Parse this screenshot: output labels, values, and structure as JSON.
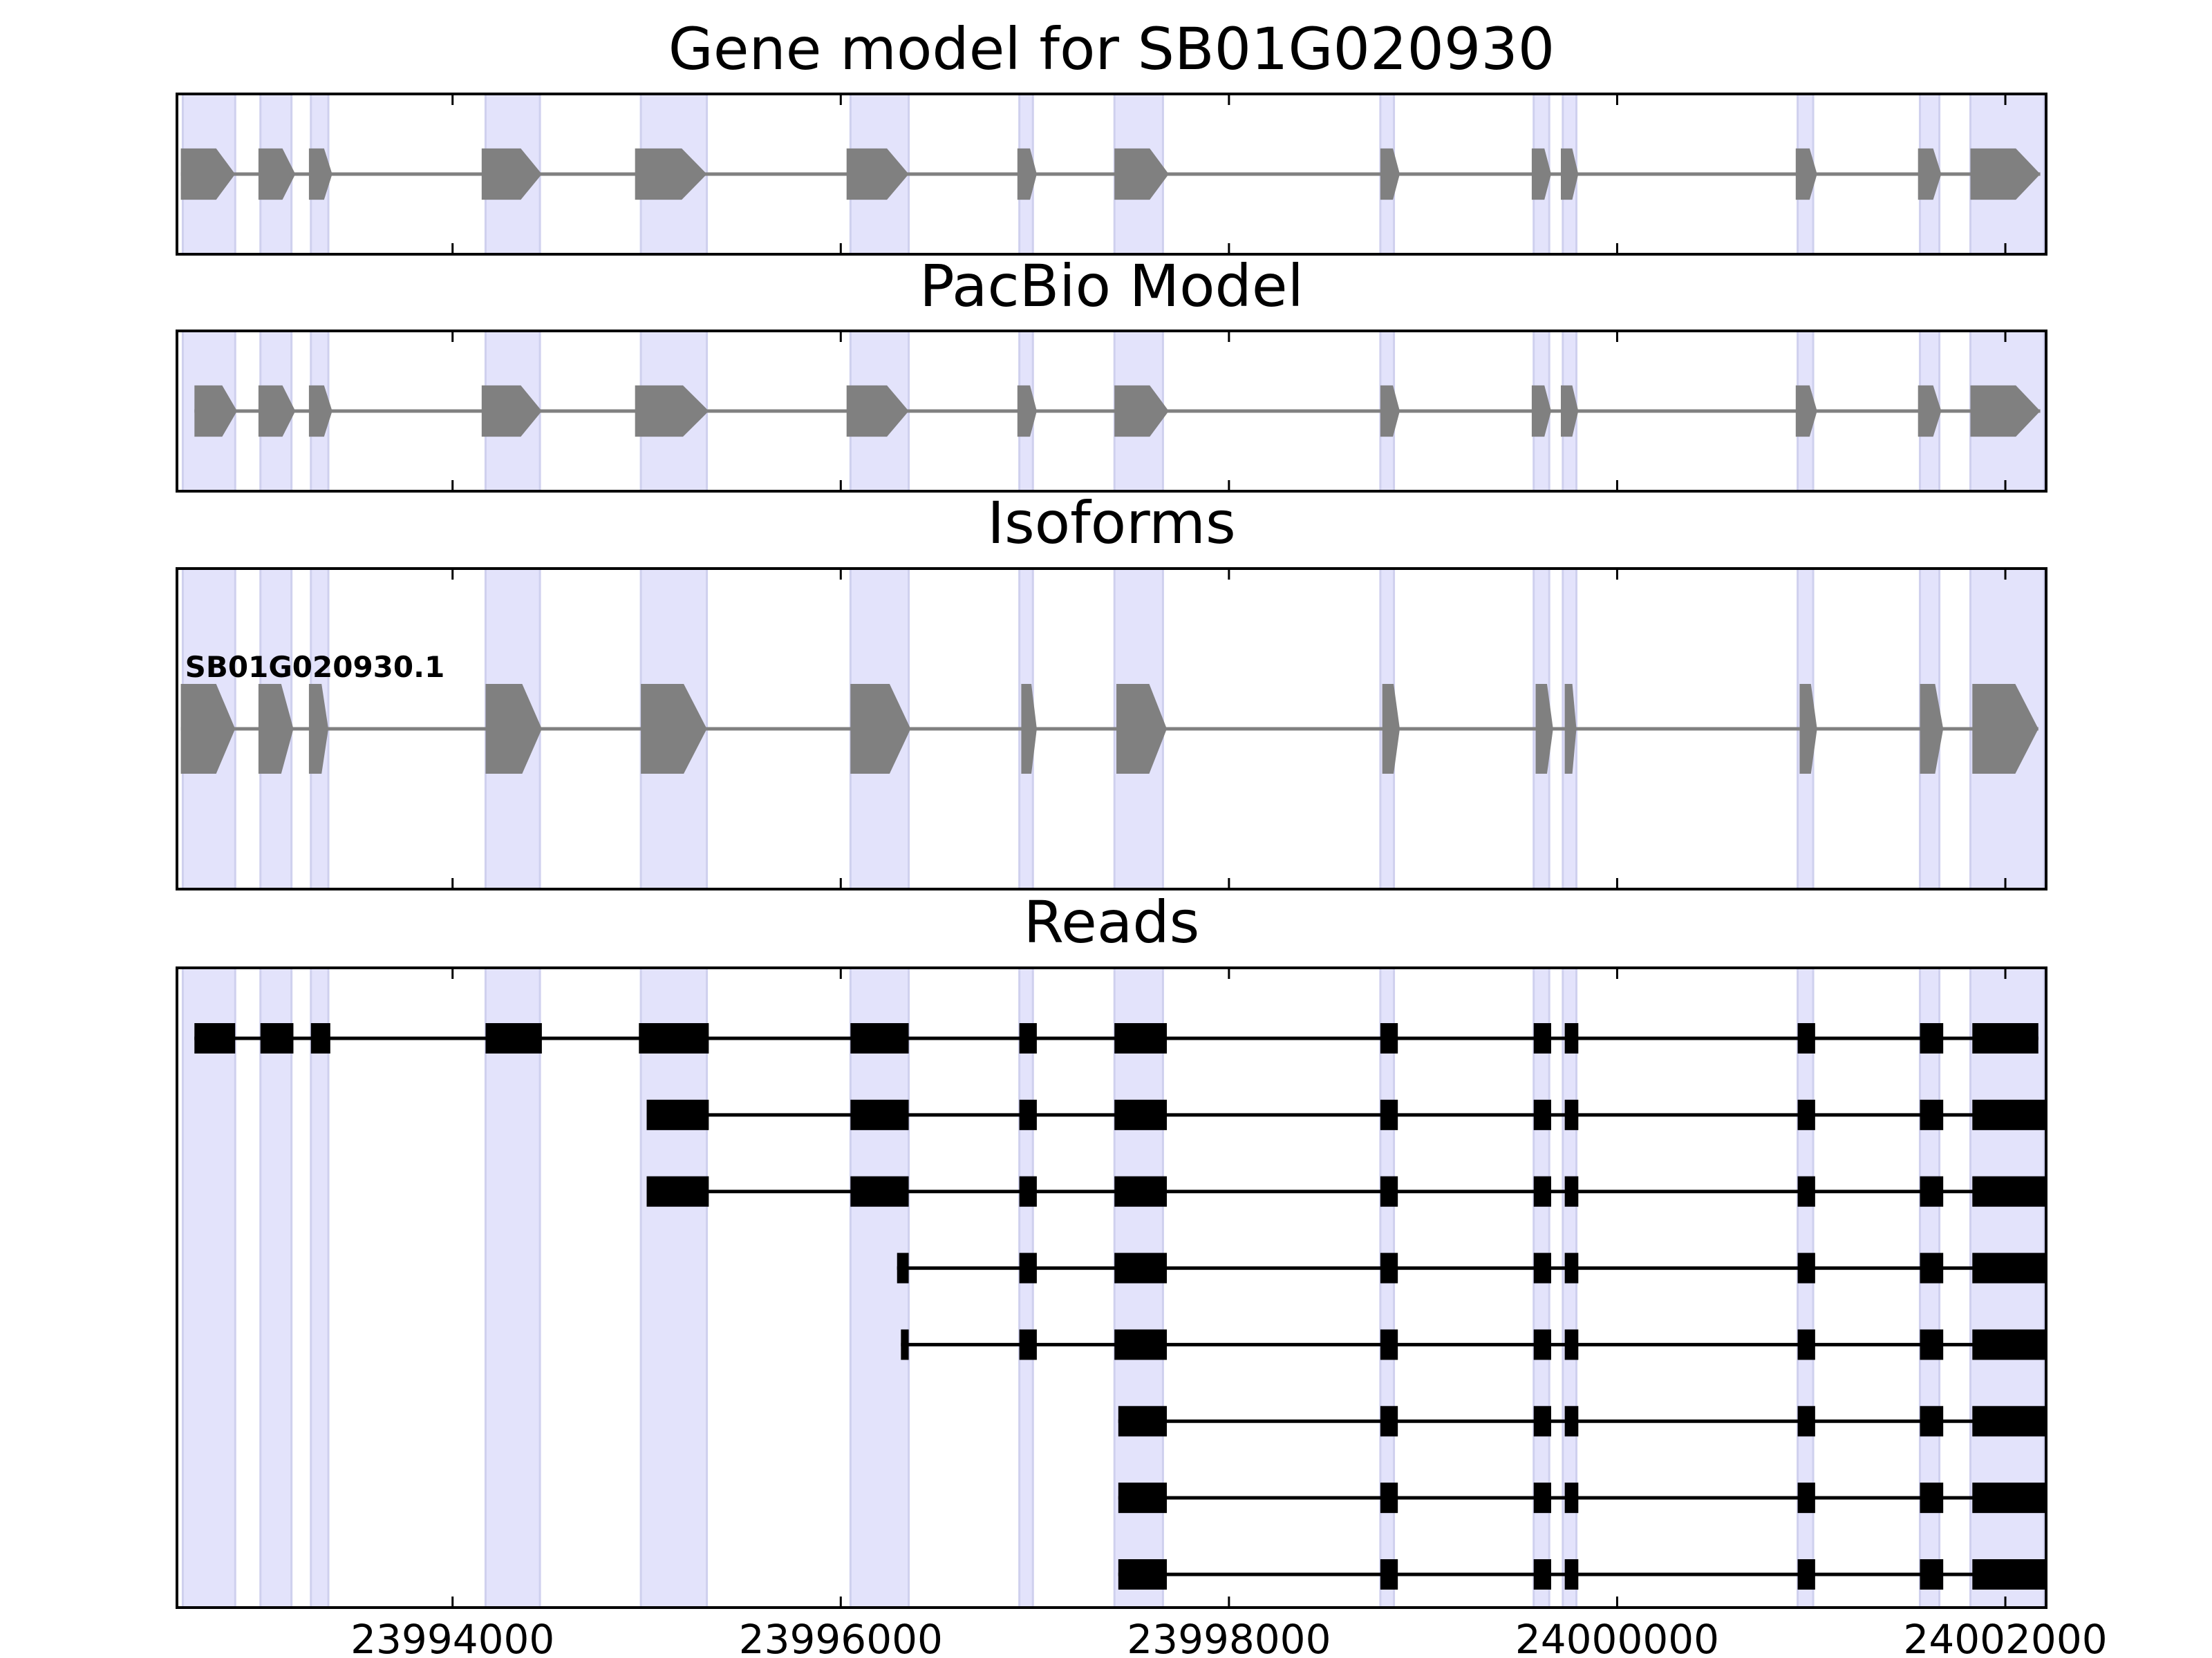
{
  "chart_data": {
    "type": "gene-model",
    "x_range": [
      23992580,
      24002210
    ],
    "x_ticks": [
      23994000,
      23996000,
      23998000,
      24000000,
      24002000
    ],
    "x_tick_labels": [
      "23994000",
      "23996000",
      "23998000",
      "24000000",
      "24002000"
    ],
    "colors": {
      "highlight": "#e3e3fb",
      "highlight_edge": "#cfd0ee",
      "feature": "#808080",
      "read": "#000000",
      "axes": "#000000"
    },
    "highlight_regions": [
      [
        23992610,
        23992880
      ],
      [
        23993010,
        23993170
      ],
      [
        23993270,
        23993360
      ],
      [
        23994170,
        23994450
      ],
      [
        23994970,
        23995310
      ],
      [
        23996050,
        23996350
      ],
      [
        23996920,
        23996990
      ],
      [
        23997410,
        23997660
      ],
      [
        23998780,
        23998850
      ],
      [
        23999570,
        23999650
      ],
      [
        23999720,
        23999790
      ],
      [
        24000930,
        24001010
      ],
      [
        24001560,
        24001660
      ],
      [
        24001820,
        24002200
      ]
    ],
    "panels": [
      {
        "title": "Gene model for SB01G020930",
        "style": "gene",
        "feature_height": 0.32,
        "tracks": [
          {
            "label": "",
            "exons": [
              [
                23992600,
                23992880
              ],
              [
                23993000,
                23993190
              ],
              [
                23993260,
                23993380
              ],
              [
                23994150,
                23994460
              ],
              [
                23994940,
                23995310
              ],
              [
                23996030,
                23996350
              ],
              [
                23996910,
                23997010
              ],
              [
                23997410,
                23997690
              ],
              [
                23998780,
                23998880
              ],
              [
                23999560,
                23999660
              ],
              [
                23999710,
                23999800
              ],
              [
                24000920,
                24001030
              ],
              [
                24001550,
                24001670
              ],
              [
                24001820,
                24002180
              ]
            ]
          }
        ]
      },
      {
        "title": "PacBio Model",
        "style": "gene",
        "feature_height": 0.32,
        "tracks": [
          {
            "label": "",
            "exons": [
              [
                23992670,
                23992890
              ],
              [
                23993000,
                23993190
              ],
              [
                23993260,
                23993380
              ],
              [
                23994150,
                23994460
              ],
              [
                23994940,
                23995320
              ],
              [
                23996030,
                23996350
              ],
              [
                23996910,
                23997010
              ],
              [
                23997410,
                23997690
              ],
              [
                23998780,
                23998880
              ],
              [
                23999560,
                23999660
              ],
              [
                23999710,
                23999800
              ],
              [
                24000920,
                24001030
              ],
              [
                24001550,
                24001670
              ],
              [
                24001820,
                24002180
              ]
            ]
          }
        ]
      },
      {
        "title": "Isoforms",
        "style": "gene",
        "feature_height": 0.28,
        "tracks": [
          {
            "label": "SB01G020930.1",
            "exons": [
              [
                23992600,
                23992880
              ],
              [
                23993000,
                23993180
              ],
              [
                23993260,
                23993360
              ],
              [
                23994170,
                23994460
              ],
              [
                23994970,
                23995310
              ],
              [
                23996050,
                23996360
              ],
              [
                23996930,
                23997010
              ],
              [
                23997420,
                23997680
              ],
              [
                23998790,
                23998880
              ],
              [
                23999580,
                23999670
              ],
              [
                23999730,
                23999790
              ],
              [
                24000940,
                24001030
              ],
              [
                24001560,
                24001680
              ],
              [
                24001830,
                24002170
              ]
            ]
          }
        ]
      },
      {
        "title": "Reads",
        "style": "read",
        "feature_height": 0.4,
        "tracks": [
          {
            "label": "",
            "exons": [
              [
                23992670,
                23992880
              ],
              [
                23993010,
                23993180
              ],
              [
                23993270,
                23993370
              ],
              [
                23994170,
                23994460
              ],
              [
                23994960,
                23995320
              ],
              [
                23996050,
                23996350
              ],
              [
                23996920,
                23997010
              ],
              [
                23997410,
                23997680
              ],
              [
                23998780,
                23998870
              ],
              [
                23999570,
                23999660
              ],
              [
                23999730,
                23999800
              ],
              [
                24000930,
                24001020
              ],
              [
                24001560,
                24001680
              ],
              [
                24001830,
                24002170
              ]
            ]
          },
          {
            "label": "",
            "exons": [
              [
                23995000,
                23995320
              ],
              [
                23996050,
                23996350
              ],
              [
                23996920,
                23997010
              ],
              [
                23997410,
                23997680
              ],
              [
                23998780,
                23998870
              ],
              [
                23999570,
                23999660
              ],
              [
                23999730,
                23999800
              ],
              [
                24000930,
                24001020
              ],
              [
                24001560,
                24001680
              ],
              [
                24001830,
                24002210
              ]
            ]
          },
          {
            "label": "",
            "exons": [
              [
                23995000,
                23995320
              ],
              [
                23996050,
                23996350
              ],
              [
                23996920,
                23997010
              ],
              [
                23997410,
                23997680
              ],
              [
                23998780,
                23998870
              ],
              [
                23999570,
                23999660
              ],
              [
                23999730,
                23999800
              ],
              [
                24000930,
                24001020
              ],
              [
                24001560,
                24001680
              ],
              [
                24001830,
                24002210
              ]
            ]
          },
          {
            "label": "",
            "exons": [
              [
                23996290,
                23996350
              ],
              [
                23996920,
                23997010
              ],
              [
                23997410,
                23997680
              ],
              [
                23998780,
                23998870
              ],
              [
                23999570,
                23999660
              ],
              [
                23999730,
                23999800
              ],
              [
                24000930,
                24001020
              ],
              [
                24001560,
                24001680
              ],
              [
                24001830,
                24002210
              ]
            ]
          },
          {
            "label": "",
            "exons": [
              [
                23996310,
                23996350
              ],
              [
                23996920,
                23997010
              ],
              [
                23997410,
                23997680
              ],
              [
                23998780,
                23998870
              ],
              [
                23999570,
                23999660
              ],
              [
                23999730,
                23999800
              ],
              [
                24000930,
                24001020
              ],
              [
                24001560,
                24001680
              ],
              [
                24001830,
                24002210
              ]
            ]
          },
          {
            "label": "",
            "exons": [
              [
                23997430,
                23997680
              ],
              [
                23998780,
                23998870
              ],
              [
                23999570,
                23999660
              ],
              [
                23999730,
                23999800
              ],
              [
                24000930,
                24001020
              ],
              [
                24001560,
                24001680
              ],
              [
                24001830,
                24002210
              ]
            ]
          },
          {
            "label": "",
            "exons": [
              [
                23997430,
                23997680
              ],
              [
                23998780,
                23998870
              ],
              [
                23999570,
                23999660
              ],
              [
                23999730,
                23999800
              ],
              [
                24000930,
                24001020
              ],
              [
                24001560,
                24001680
              ],
              [
                24001830,
                24002210
              ]
            ]
          },
          {
            "label": "",
            "exons": [
              [
                23997430,
                23997680
              ],
              [
                23998780,
                23998870
              ],
              [
                23999570,
                23999660
              ],
              [
                23999730,
                23999800
              ],
              [
                24000930,
                24001020
              ],
              [
                24001560,
                24001680
              ],
              [
                24001830,
                24002210
              ]
            ]
          }
        ]
      }
    ]
  }
}
